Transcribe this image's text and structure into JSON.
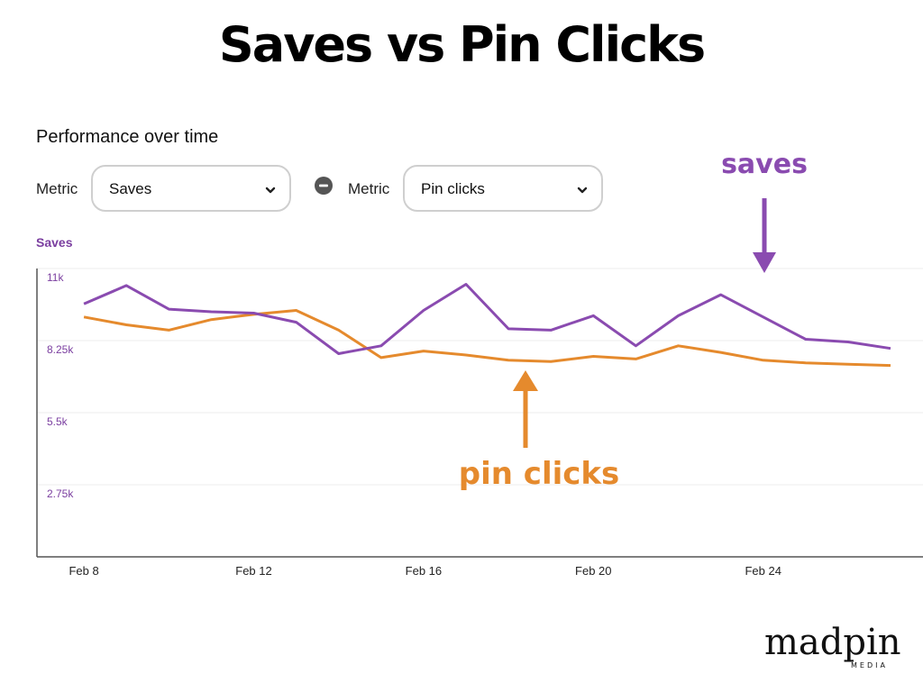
{
  "headline": "Saves vs Pin Clicks",
  "panel": {
    "title": "Performance over time",
    "metric1": {
      "label": "Metric",
      "value": "Saves"
    },
    "metric2": {
      "label": "Metric",
      "value": "Pin clicks"
    },
    "axis_title": "Saves"
  },
  "annotations": {
    "saves": "saves",
    "pin_clicks": "pin clicks"
  },
  "logo": {
    "text": "madpin",
    "sub": "MEDIA"
  },
  "colors": {
    "saves": "#8a4bb0",
    "pin_clicks": "#e58a2d",
    "axis_text": "#7b3fa0"
  },
  "icons": {
    "dropdown": "chevron-down-icon",
    "remove": "minus-circle-icon"
  },
  "chart_data": {
    "type": "line",
    "x": [
      "Feb 7",
      "Feb 8",
      "Feb 9",
      "Feb 10",
      "Feb 11",
      "Feb 12",
      "Feb 13",
      "Feb 14",
      "Feb 15",
      "Feb 16",
      "Feb 17",
      "Feb 18",
      "Feb 19",
      "Feb 20",
      "Feb 21",
      "Feb 22",
      "Feb 23",
      "Feb 24",
      "Feb 25",
      "Feb 26",
      "Feb 27"
    ],
    "x_ticks": [
      "Feb 8",
      "Feb 12",
      "Feb 16",
      "Feb 20",
      "Feb 24"
    ],
    "series": [
      {
        "name": "Saves",
        "values": [
          null,
          9650,
          10350,
          9450,
          9350,
          9300,
          8950,
          7750,
          8050,
          9400,
          10400,
          8700,
          8650,
          9200,
          8050,
          9200,
          10000,
          null,
          8300,
          8200,
          7950
        ]
      },
      {
        "name": "Pin clicks",
        "values": [
          null,
          9150,
          8850,
          8650,
          9050,
          9250,
          9400,
          8650,
          7600,
          7850,
          7700,
          7500,
          7450,
          7650,
          7550,
          8050,
          7800,
          7500,
          7400,
          7350,
          7300
        ]
      }
    ],
    "y_ticks": [
      "11k",
      "8.25k",
      "5.5k",
      "2.75k"
    ],
    "ylim": [
      0,
      11000
    ],
    "grid": true
  }
}
